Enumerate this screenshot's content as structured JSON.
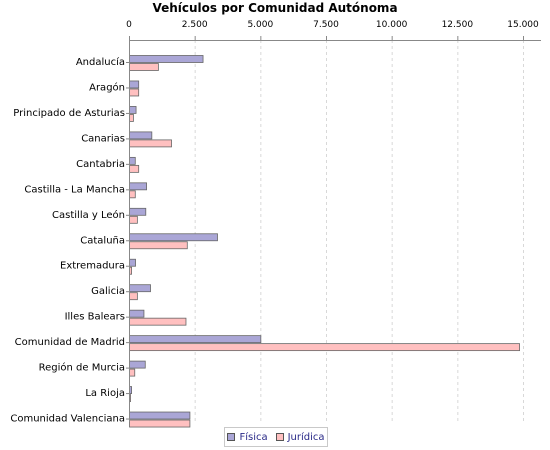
{
  "chart_data": {
    "type": "bar",
    "orientation": "horizontal",
    "title": "Vehículos por Comunidad Autónoma",
    "xlabel": "",
    "ylabel": "",
    "xlim": [
      0,
      15500
    ],
    "x_ticks": [
      0,
      2500,
      5000,
      7500,
      10000,
      12500,
      15000
    ],
    "x_tick_labels": [
      "0",
      "2.500",
      "5.000",
      "7.500",
      "10.000",
      "12.500",
      "15.000"
    ],
    "x_axis_position": "top",
    "grid": true,
    "legend_placement": "bottom-center",
    "categories": [
      "Andalucía",
      "Aragón",
      "Principado de Asturias",
      "Canarias",
      "Cantabria",
      "Castilla - La Mancha",
      "Castilla y León",
      "Cataluña",
      "Extremadura",
      "Galicia",
      "Illes Balears",
      "Comunidad de Madrid",
      "Región de Murcia",
      "La Rioja",
      "Comunidad Valenciana"
    ],
    "series": [
      {
        "name": "Física",
        "color": "#aaa6d6",
        "values": [
          2800,
          350,
          250,
          850,
          220,
          650,
          620,
          3350,
          230,
          800,
          550,
          5000,
          600,
          80,
          2300
        ]
      },
      {
        "name": "Jurídica",
        "color": "#ffc0c0",
        "values": [
          1100,
          350,
          150,
          1600,
          350,
          220,
          300,
          2200,
          80,
          300,
          2150,
          14850,
          200,
          40,
          2300
        ]
      }
    ]
  }
}
